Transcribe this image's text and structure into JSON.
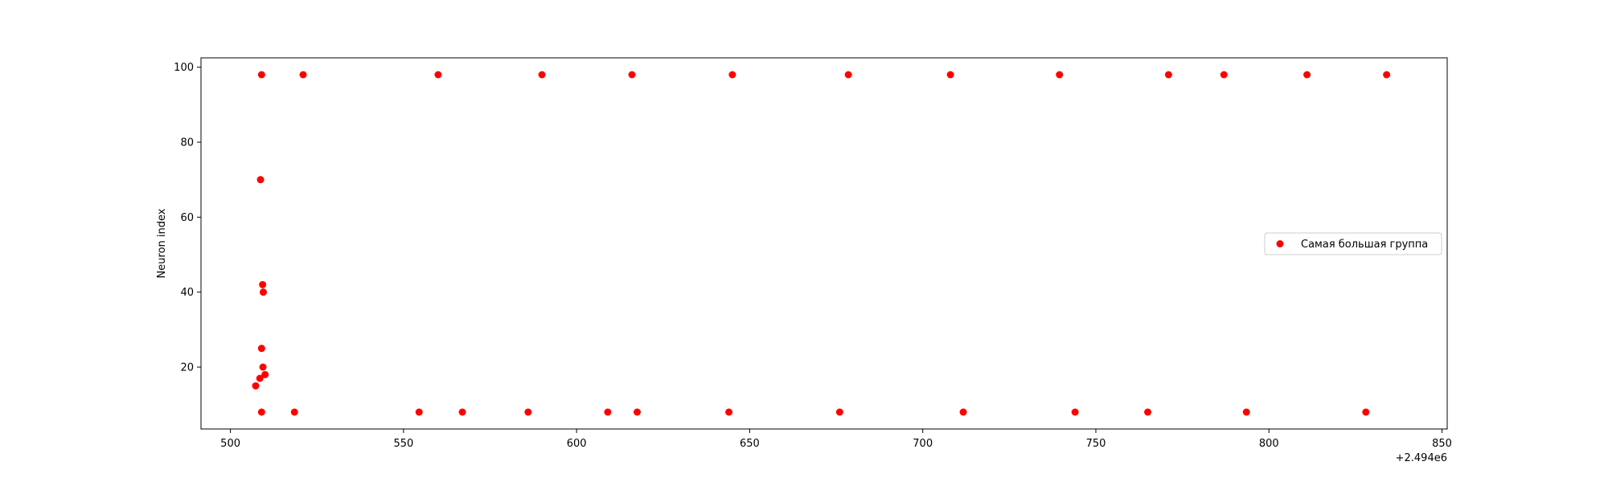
{
  "chart_data": {
    "type": "scatter",
    "title": "",
    "xlabel": "",
    "ylabel": "Neuron index",
    "x_offset_label": "+2.494e6",
    "x_ticks": [
      500,
      550,
      600,
      650,
      700,
      750,
      800,
      850
    ],
    "y_ticks": [
      20,
      40,
      60,
      80,
      100
    ],
    "xlim": [
      491.5,
      851.5
    ],
    "ylim": [
      3.5,
      102.5
    ],
    "grid": false,
    "legend_position": "center-right",
    "series": [
      {
        "name": "Самая большая группа",
        "color": "#ff0000",
        "points": [
          {
            "x": 509,
            "y": 98
          },
          {
            "x": 521,
            "y": 98
          },
          {
            "x": 560,
            "y": 98
          },
          {
            "x": 590,
            "y": 98
          },
          {
            "x": 616,
            "y": 98
          },
          {
            "x": 645,
            "y": 98
          },
          {
            "x": 678.5,
            "y": 98
          },
          {
            "x": 708,
            "y": 98
          },
          {
            "x": 739.5,
            "y": 98
          },
          {
            "x": 771,
            "y": 98
          },
          {
            "x": 787,
            "y": 98
          },
          {
            "x": 811,
            "y": 98
          },
          {
            "x": 834,
            "y": 98
          },
          {
            "x": 508.7,
            "y": 70
          },
          {
            "x": 509.3,
            "y": 42
          },
          {
            "x": 509.5,
            "y": 40
          },
          {
            "x": 509,
            "y": 25
          },
          {
            "x": 509.4,
            "y": 20
          },
          {
            "x": 510,
            "y": 18
          },
          {
            "x": 508.5,
            "y": 17
          },
          {
            "x": 507.3,
            "y": 15
          },
          {
            "x": 509,
            "y": 8
          },
          {
            "x": 518.5,
            "y": 8
          },
          {
            "x": 554.5,
            "y": 8
          },
          {
            "x": 567,
            "y": 8
          },
          {
            "x": 586,
            "y": 8
          },
          {
            "x": 609,
            "y": 8
          },
          {
            "x": 617.5,
            "y": 8
          },
          {
            "x": 644,
            "y": 8
          },
          {
            "x": 676,
            "y": 8
          },
          {
            "x": 711.7,
            "y": 8
          },
          {
            "x": 744,
            "y": 8
          },
          {
            "x": 765,
            "y": 8
          },
          {
            "x": 793.5,
            "y": 8
          },
          {
            "x": 828,
            "y": 8
          }
        ]
      }
    ]
  }
}
